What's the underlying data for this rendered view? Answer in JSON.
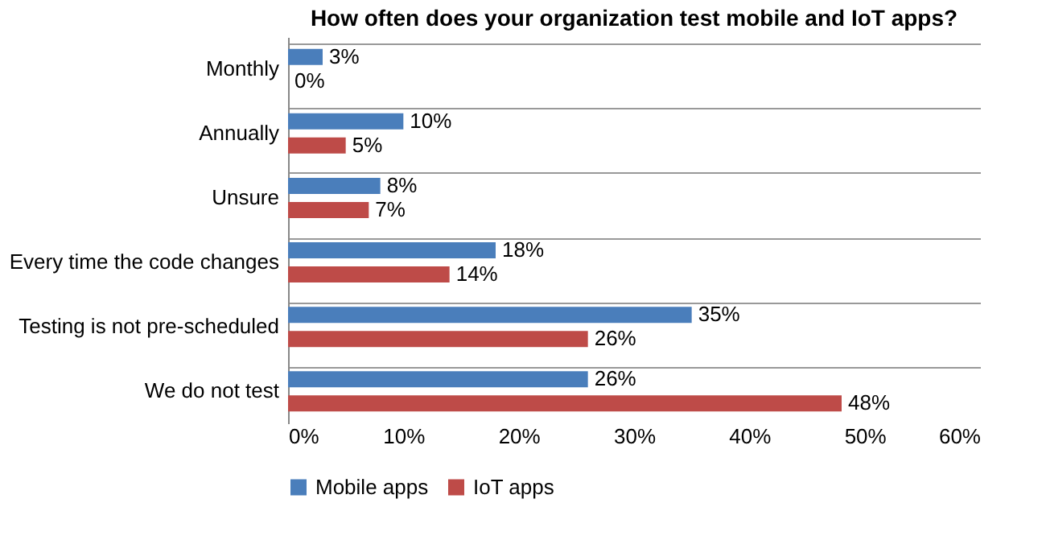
{
  "chart_data": {
    "type": "bar",
    "orientation": "horizontal",
    "title": "How often does your organization test mobile and IoT apps?",
    "categories": [
      "Monthly",
      "Annually",
      "Unsure",
      "Every time the code changes",
      "Testing is not pre-scheduled",
      "We do not test"
    ],
    "series": [
      {
        "name": "Mobile apps",
        "color": "#4a7ebb",
        "values": [
          3,
          10,
          8,
          18,
          35,
          26
        ],
        "value_labels": [
          "3%",
          "10%",
          "8%",
          "18%",
          "35%",
          "26%"
        ]
      },
      {
        "name": "IoT apps",
        "color": "#be4b48",
        "values": [
          0,
          5,
          7,
          14,
          26,
          48
        ],
        "value_labels": [
          "0%",
          "5%",
          "7%",
          "14%",
          "26%",
          "48%"
        ]
      }
    ],
    "xlim": [
      0,
      60
    ],
    "xticks": [
      {
        "value": 0,
        "label": "0%"
      },
      {
        "value": 10,
        "label": "10%"
      },
      {
        "value": 20,
        "label": "20%"
      },
      {
        "value": 30,
        "label": "30%"
      },
      {
        "value": 40,
        "label": "40%"
      },
      {
        "value": 50,
        "label": "50%"
      },
      {
        "value": 60,
        "label": "60%"
      }
    ],
    "grid": "y",
    "legend": "bottom"
  }
}
